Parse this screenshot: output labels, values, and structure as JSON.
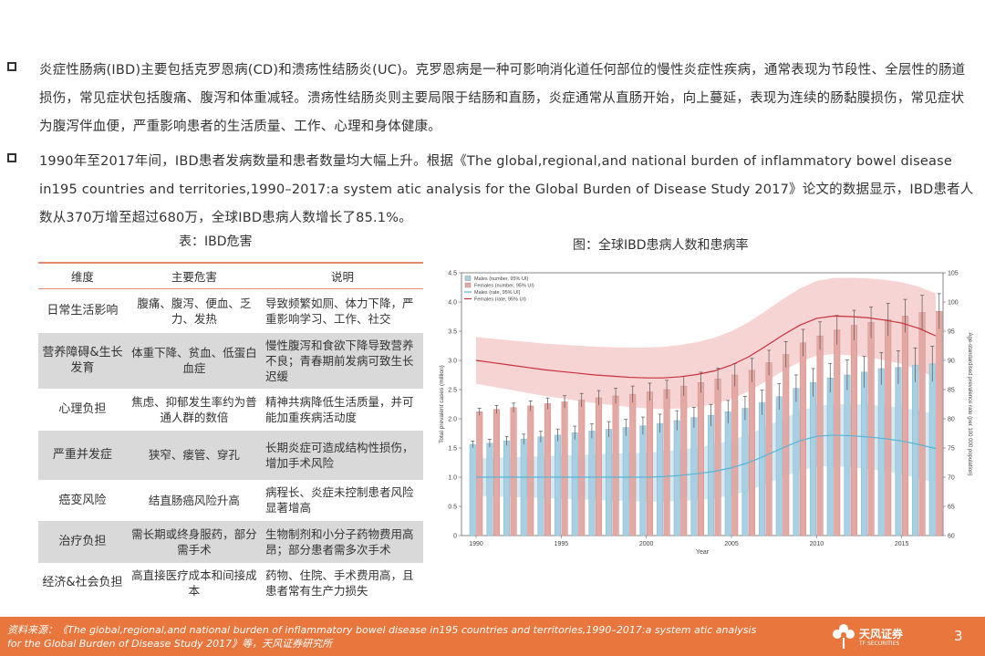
{
  "bullets": [
    "炎症性肠病(IBD)主要包括克罗恩病(CD)和溃疡性结肠炎(UC)。克罗恩病是一种可影响消化道任何部位的慢性炎症性疾病，通常表现为节段性、全层性的肠道损伤，常见症状包括腹痛、腹泻和体重减轻。溃疡性结肠炎则主要局限于结肠和直肠，炎症通常从直肠开始，向上蔓延，表现为连续的肠黏膜损伤，常见症状为腹泻伴血便，严重影响患者的生活质量、工作、心理和身体健康。",
    "1990年至2017年间，IBD患者发病数量和患者数量均大幅上升。根据《The global,regional,and national burden of inflammatory bowel disease in195 countries and territories,1990–2017:a system atic analysis for the Global Burden of Disease Study 2017》论文的数据显示，IBD患者人数从370万增至超过680万，全球IBD患病人数增长了85.1%。"
  ],
  "table": {
    "title": "表：IBD危害",
    "headers": [
      "维度",
      "主要危害",
      "说明"
    ],
    "rows": [
      [
        "日常生活影响",
        "腹痛、腹泻、便血、乏力、发热",
        "导致频繁如厕、体力下降，严重影响学习、工作、社交"
      ],
      [
        "营养障碍&生长发育",
        "体重下降、贫血、低蛋白血症",
        "慢性腹泻和食欲下降导致营养不良；青春期前发病可致生长迟缓"
      ],
      [
        "心理负担",
        "焦虑、抑郁发生率约为普通人群的数倍",
        "精神共病降低生活质量，并可能加重疾病活动度"
      ],
      [
        "严重并发症",
        "狭窄、瘘管、穿孔",
        "长期炎症可造成结构性损伤，增加手术风险"
      ],
      [
        "癌变风险",
        "结直肠癌风险升高",
        "病程长、炎症未控制患者风险显著增高"
      ],
      [
        "治疗负担",
        "需长期或终身服药，部分需手术",
        "生物制剂和小分子药物费用高昂；部分患者需多次手术"
      ],
      [
        "经济&社会负担",
        "高直接医疗成本和间接成本",
        "药物、住院、手术费用高，且患者常有生产力损失"
      ]
    ]
  },
  "chart_title": "图：全球IBD患病人数和患病率",
  "chart_data": {
    "type": "bar",
    "x": [
      1990,
      1991,
      1992,
      1993,
      1994,
      1995,
      1996,
      1997,
      1998,
      1999,
      2000,
      2001,
      2002,
      2003,
      2004,
      2005,
      2006,
      2007,
      2008,
      2009,
      2010,
      2011,
      2012,
      2013,
      2014,
      2015,
      2016,
      2017
    ],
    "xticks": [
      "1990",
      "1995",
      "2000",
      "2005",
      "2010",
      "2015"
    ],
    "xlabel": "Year",
    "ylabel_left": "Total prevalent cases (million)",
    "ylabel_right": "Age-standardised prevalence rate (per 100 000 population)",
    "ylim_left": [
      0,
      4.5
    ],
    "yticks_left": [
      "0",
      "0.5",
      "1.0",
      "1.5",
      "2.0",
      "2.5",
      "3.0",
      "3.5",
      "4.0",
      "4.5"
    ],
    "ylim_right": [
      60,
      105
    ],
    "yticks_right": [
      "60",
      "65",
      "70",
      "75",
      "80",
      "85",
      "90",
      "95",
      "100",
      "105"
    ],
    "series": [
      {
        "name": "Males (number, 95% UI)",
        "axis": "left",
        "color": "#a9cfe3",
        "values": [
          1.56,
          1.58,
          1.62,
          1.65,
          1.69,
          1.72,
          1.76,
          1.79,
          1.82,
          1.85,
          1.88,
          1.92,
          1.97,
          2.02,
          2.06,
          2.12,
          2.18,
          2.28,
          2.38,
          2.52,
          2.62,
          2.7,
          2.75,
          2.8,
          2.86,
          2.88,
          2.92,
          2.94
        ]
      },
      {
        "name": "Females (number, 95% UI)",
        "axis": "left",
        "color": "#e5a9a4",
        "values": [
          2.12,
          2.16,
          2.19,
          2.22,
          2.26,
          2.29,
          2.32,
          2.36,
          2.39,
          2.42,
          2.46,
          2.5,
          2.56,
          2.62,
          2.68,
          2.75,
          2.83,
          2.96,
          3.1,
          3.3,
          3.42,
          3.52,
          3.6,
          3.65,
          3.7,
          3.76,
          3.82,
          3.84
        ]
      },
      {
        "name": "Males (rate, 95% UI)",
        "axis": "right",
        "color": "#5ab3d6",
        "values": [
          70.0,
          70.0,
          70.0,
          70.0,
          70.0,
          70.0,
          70.0,
          70.0,
          70.0,
          70.0,
          70.0,
          70.1,
          70.3,
          70.6,
          71.0,
          71.6,
          72.5,
          73.7,
          75.0,
          76.2,
          77.0,
          77.2,
          77.1,
          76.9,
          76.6,
          76.2,
          75.6,
          74.9
        ]
      },
      {
        "name": "Females (rate, 95% UI)",
        "axis": "right",
        "color": "#c8303a",
        "values": [
          90.0,
          89.6,
          89.2,
          88.8,
          88.4,
          88.1,
          87.8,
          87.5,
          87.3,
          87.1,
          87.0,
          87.0,
          87.2,
          87.6,
          88.2,
          89.2,
          90.6,
          92.4,
          94.3,
          96.0,
          97.2,
          97.6,
          97.5,
          97.3,
          96.9,
          96.4,
          95.5,
          94.2
        ]
      }
    ],
    "legend": "top-left"
  },
  "footer": {
    "source_line1": "资料来源：《The global,regional,and national burden of inflammatory bowel disease in195 countries and territories,1990–2017:a system atic analysis",
    "source_line2": "for the Global Burden of Disease Study 2017》等，天风证券研究所",
    "brand": "天风证券",
    "brand_en": "TF SECURITIES",
    "page": "3"
  }
}
